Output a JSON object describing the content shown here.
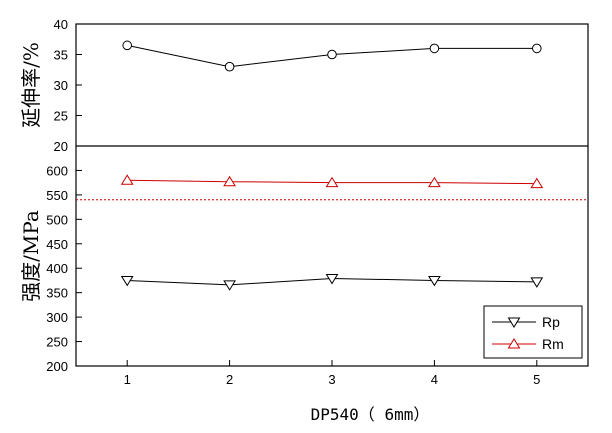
{
  "chart_data": {
    "type": "line",
    "xlabel": "DP540（ 6mm）",
    "x": [
      1,
      2,
      3,
      4,
      5
    ],
    "x_ticks": [
      "1",
      "2",
      "3",
      "4",
      "5"
    ],
    "xlim": [
      0.5,
      5.5
    ],
    "grid": false,
    "panels": [
      {
        "ylabel": "延伸率/%",
        "ylim": [
          20,
          40
        ],
        "y_ticks": [
          "20",
          "25",
          "30",
          "35",
          "40"
        ],
        "series": [
          {
            "values": [
              36.5,
              33,
              35,
              36,
              36
            ],
            "marker": "circle",
            "color": "#000000"
          }
        ]
      },
      {
        "ylabel": "强度/MPa",
        "ylim": [
          200,
          650
        ],
        "y_ticks": [
          "200",
          "250",
          "300",
          "350",
          "400",
          "450",
          "500",
          "550",
          "600"
        ],
        "reference_line": {
          "value": 540,
          "color": "#cc0000",
          "style": "dotted"
        },
        "legend_position": "bottom-right",
        "series": [
          {
            "name": "Rp",
            "values": [
              375,
              366,
              379,
              375,
              372
            ],
            "marker": "triangle-down",
            "color": "#000000"
          },
          {
            "name": "Rm",
            "values": [
              580,
              577,
              575,
              575,
              573
            ],
            "marker": "triangle-up",
            "color": "#cc0000"
          }
        ]
      }
    ]
  }
}
